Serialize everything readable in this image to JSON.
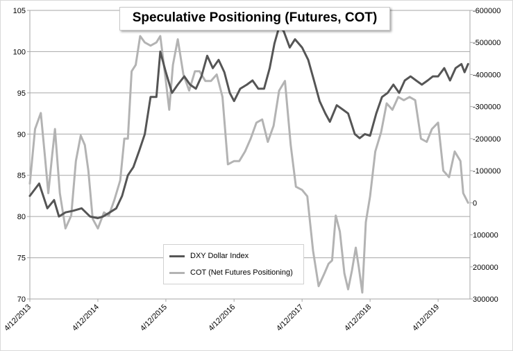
{
  "chart_data": {
    "type": "line",
    "title": "Speculative Positioning (Futures, COT)",
    "x_tick_labels": [
      "4/12/2013",
      "4/12/2014",
      "4/12/2015",
      "4/12/2016",
      "4/12/2017",
      "4/12/2018",
      "4/12/2019"
    ],
    "xlim": [
      "2013-04-12",
      "2019-09-30"
    ],
    "y_left": {
      "lim": [
        70,
        105
      ],
      "ticks": [
        70,
        75,
        80,
        85,
        90,
        95,
        100,
        105
      ]
    },
    "y_right": {
      "lim": [
        300000,
        -600000
      ],
      "inverted": true,
      "ticks": [
        -600000,
        -500000,
        -400000,
        -300000,
        -200000,
        -100000,
        0,
        100000,
        200000,
        300000
      ],
      "tick_labels": [
        "-600000",
        "-500000",
        "-400000",
        "-300000",
        "-200000",
        "-100000",
        "0",
        "100000",
        "200000",
        "300000"
      ]
    },
    "grid": "horizontal",
    "legend_placement": "bottom-center",
    "series": [
      {
        "name": "DXY Dollar Index",
        "axis": "left",
        "color": "#555555",
        "x": [
          "2013-04-12",
          "2013-06-01",
          "2013-07-15",
          "2013-08-20",
          "2013-09-15",
          "2013-10-20",
          "2013-12-01",
          "2014-01-15",
          "2014-03-01",
          "2014-04-12",
          "2014-05-10",
          "2014-06-15",
          "2014-07-20",
          "2014-08-20",
          "2014-09-20",
          "2014-10-20",
          "2014-11-20",
          "2014-12-20",
          "2015-01-20",
          "2015-02-20",
          "2015-03-13",
          "2015-04-12",
          "2015-05-15",
          "2015-06-15",
          "2015-07-20",
          "2015-08-20",
          "2015-09-20",
          "2015-10-20",
          "2015-11-20",
          "2015-12-20",
          "2016-01-20",
          "2016-02-20",
          "2016-03-20",
          "2016-04-12",
          "2016-05-15",
          "2016-06-20",
          "2016-07-20",
          "2016-08-20",
          "2016-09-20",
          "2016-10-20",
          "2016-11-15",
          "2016-12-10",
          "2017-01-03",
          "2017-02-05",
          "2017-03-05",
          "2017-04-12",
          "2017-05-15",
          "2017-06-15",
          "2017-07-15",
          "2017-08-15",
          "2017-09-08",
          "2017-10-15",
          "2017-11-15",
          "2017-12-15",
          "2018-01-20",
          "2018-02-15",
          "2018-03-15",
          "2018-04-12",
          "2018-05-15",
          "2018-06-15",
          "2018-07-15",
          "2018-08-15",
          "2018-09-15",
          "2018-10-15",
          "2018-11-15",
          "2018-12-15",
          "2019-01-15",
          "2019-02-15",
          "2019-03-15",
          "2019-04-12",
          "2019-05-15",
          "2019-06-15",
          "2019-07-15",
          "2019-08-15",
          "2019-09-01",
          "2019-09-20"
        ],
        "values": [
          82.5,
          84.0,
          81.0,
          82.0,
          80.0,
          80.5,
          80.7,
          81.0,
          80.0,
          79.8,
          80.0,
          80.5,
          81.0,
          82.5,
          85.0,
          86.0,
          88.0,
          90.0,
          94.5,
          94.5,
          100.0,
          97.5,
          95.0,
          96.0,
          97.0,
          96.0,
          95.5,
          97.0,
          99.5,
          98.0,
          99.0,
          97.5,
          95.0,
          94.0,
          95.5,
          96.0,
          96.5,
          95.5,
          95.5,
          98.0,
          101.0,
          103.0,
          102.5,
          100.5,
          101.5,
          100.5,
          99.0,
          96.5,
          94.0,
          92.5,
          91.5,
          93.5,
          93.0,
          92.5,
          90.0,
          89.5,
          90.0,
          89.8,
          92.5,
          94.5,
          95.0,
          96.0,
          95.0,
          96.5,
          97.0,
          96.5,
          96.0,
          96.5,
          97.0,
          97.0,
          98.0,
          96.5,
          98.0,
          98.5,
          97.5,
          98.5
        ]
      },
      {
        "name": "COT (Net Futures Positioning)",
        "axis": "right",
        "color": "#b3b3b3",
        "x": [
          "2013-04-12",
          "2013-05-10",
          "2013-06-10",
          "2013-07-01",
          "2013-07-20",
          "2013-08-10",
          "2013-08-25",
          "2013-09-20",
          "2013-10-20",
          "2013-11-20",
          "2013-12-15",
          "2014-01-10",
          "2014-02-01",
          "2014-02-20",
          "2014-03-15",
          "2014-04-12",
          "2014-05-15",
          "2014-06-10",
          "2014-07-10",
          "2014-08-10",
          "2014-09-01",
          "2014-09-20",
          "2014-10-10",
          "2014-11-01",
          "2014-11-25",
          "2014-12-20",
          "2015-01-20",
          "2015-02-20",
          "2015-03-13",
          "2015-04-12",
          "2015-04-30",
          "2015-05-20",
          "2015-06-15",
          "2015-07-15",
          "2015-08-15",
          "2015-09-15",
          "2015-10-10",
          "2015-11-10",
          "2015-12-10",
          "2016-01-10",
          "2016-02-10",
          "2016-03-10",
          "2016-04-12",
          "2016-05-10",
          "2016-06-10",
          "2016-07-10",
          "2016-08-10",
          "2016-09-10",
          "2016-10-10",
          "2016-11-10",
          "2016-12-10",
          "2017-01-10",
          "2017-02-10",
          "2017-03-10",
          "2017-04-12",
          "2017-05-10",
          "2017-06-10",
          "2017-07-10",
          "2017-08-10",
          "2017-09-01",
          "2017-09-20",
          "2017-10-10",
          "2017-11-01",
          "2017-11-25",
          "2017-12-15",
          "2018-01-05",
          "2018-01-25",
          "2018-02-10",
          "2018-03-01",
          "2018-03-20",
          "2018-04-12",
          "2018-05-10",
          "2018-06-10",
          "2018-07-10",
          "2018-08-10",
          "2018-09-10",
          "2018-10-10",
          "2018-11-10",
          "2018-12-10",
          "2019-01-10",
          "2019-02-10",
          "2019-03-10",
          "2019-04-12",
          "2019-05-10",
          "2019-06-10",
          "2019-07-10",
          "2019-08-10",
          "2019-08-25",
          "2019-09-20"
        ],
        "values": [
          -60000,
          -230000,
          -280000,
          -150000,
          -30000,
          -150000,
          -230000,
          -30000,
          80000,
          40000,
          -130000,
          -210000,
          -180000,
          -100000,
          50000,
          80000,
          30000,
          40000,
          -10000,
          -70000,
          -200000,
          -200000,
          -410000,
          -430000,
          -520000,
          -500000,
          -490000,
          -500000,
          -520000,
          -380000,
          -290000,
          -430000,
          -510000,
          -400000,
          -350000,
          -410000,
          -410000,
          -380000,
          -380000,
          -400000,
          -330000,
          -120000,
          -130000,
          -130000,
          -160000,
          -200000,
          -250000,
          -260000,
          -190000,
          -240000,
          -350000,
          -380000,
          -180000,
          -50000,
          -40000,
          -20000,
          150000,
          260000,
          220000,
          190000,
          180000,
          40000,
          90000,
          220000,
          270000,
          210000,
          140000,
          200000,
          280000,
          60000,
          -20000,
          -160000,
          -220000,
          -310000,
          -290000,
          -330000,
          -320000,
          -330000,
          -320000,
          -200000,
          -190000,
          -230000,
          -250000,
          -100000,
          -80000,
          -160000,
          -130000,
          -30000,
          0
        ]
      }
    ]
  }
}
